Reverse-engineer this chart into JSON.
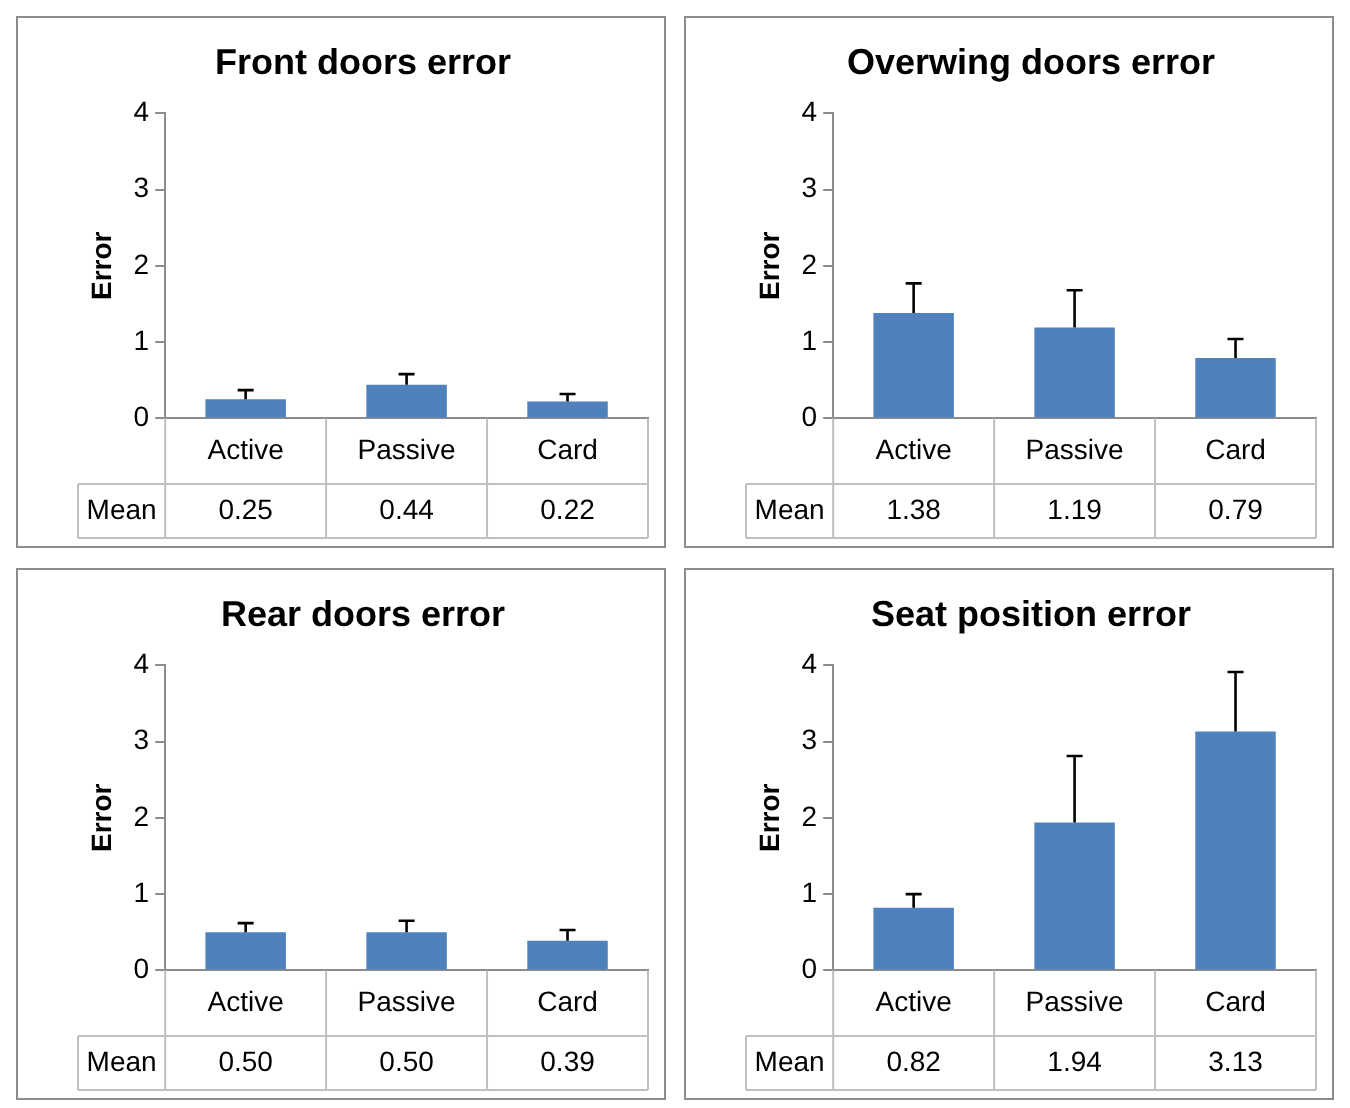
{
  "chart_data": [
    {
      "type": "bar",
      "title": "Front doors error",
      "ylabel": "Error",
      "categories": [
        "Active",
        "Passive",
        "Card"
      ],
      "ylim": [
        0,
        4
      ],
      "yticks": [
        0,
        1,
        2,
        3,
        4
      ],
      "data_labels": true,
      "series": [
        {
          "name": "Mean",
          "color": "#4f81bd",
          "values": [
            0.25,
            0.44,
            0.22
          ],
          "value_labels": [
            "0.25",
            "0.44",
            "0.22"
          ],
          "errors": [
            [
              0.25,
              0.37
            ],
            [
              0.44,
              0.58
            ],
            [
              0.22,
              0.32
            ]
          ]
        }
      ]
    },
    {
      "type": "bar",
      "title": "Overwing doors error",
      "ylabel": "Error",
      "categories": [
        "Active",
        "Passive",
        "Card"
      ],
      "ylim": [
        0,
        4
      ],
      "yticks": [
        0,
        1,
        2,
        3,
        4
      ],
      "data_labels": true,
      "series": [
        {
          "name": "Mean",
          "color": "#4f81bd",
          "values": [
            1.38,
            1.19,
            0.79
          ],
          "value_labels": [
            "1.38",
            "1.19",
            "0.79"
          ],
          "errors": [
            [
              1.38,
              1.77
            ],
            [
              1.19,
              1.68
            ],
            [
              0.79,
              1.04
            ]
          ]
        }
      ]
    },
    {
      "type": "bar",
      "title": "Rear doors error",
      "ylabel": "Error",
      "categories": [
        "Active",
        "Passive",
        "Card"
      ],
      "ylim": [
        0,
        4
      ],
      "yticks": [
        0,
        1,
        2,
        3,
        4
      ],
      "data_labels": true,
      "series": [
        {
          "name": "Mean",
          "color": "#4f81bd",
          "values": [
            0.5,
            0.5,
            0.39
          ],
          "value_labels": [
            "0.50",
            "0.50",
            "0.39"
          ],
          "errors": [
            [
              0.5,
              0.62
            ],
            [
              0.5,
              0.65
            ],
            [
              0.39,
              0.53
            ]
          ]
        }
      ]
    },
    {
      "type": "bar",
      "title": "Seat position error",
      "ylabel": "Error",
      "categories": [
        "Active",
        "Passive",
        "Card"
      ],
      "ylim": [
        0,
        4
      ],
      "yticks": [
        0,
        1,
        2,
        3,
        4
      ],
      "data_labels": true,
      "series": [
        {
          "name": "Mean",
          "color": "#4f81bd",
          "values": [
            0.82,
            1.94,
            3.13
          ],
          "value_labels": [
            "0.82",
            "1.94",
            "3.13"
          ],
          "errors": [
            [
              0.82,
              1.0
            ],
            [
              1.94,
              2.81
            ],
            [
              3.13,
              3.91
            ]
          ]
        }
      ]
    }
  ]
}
